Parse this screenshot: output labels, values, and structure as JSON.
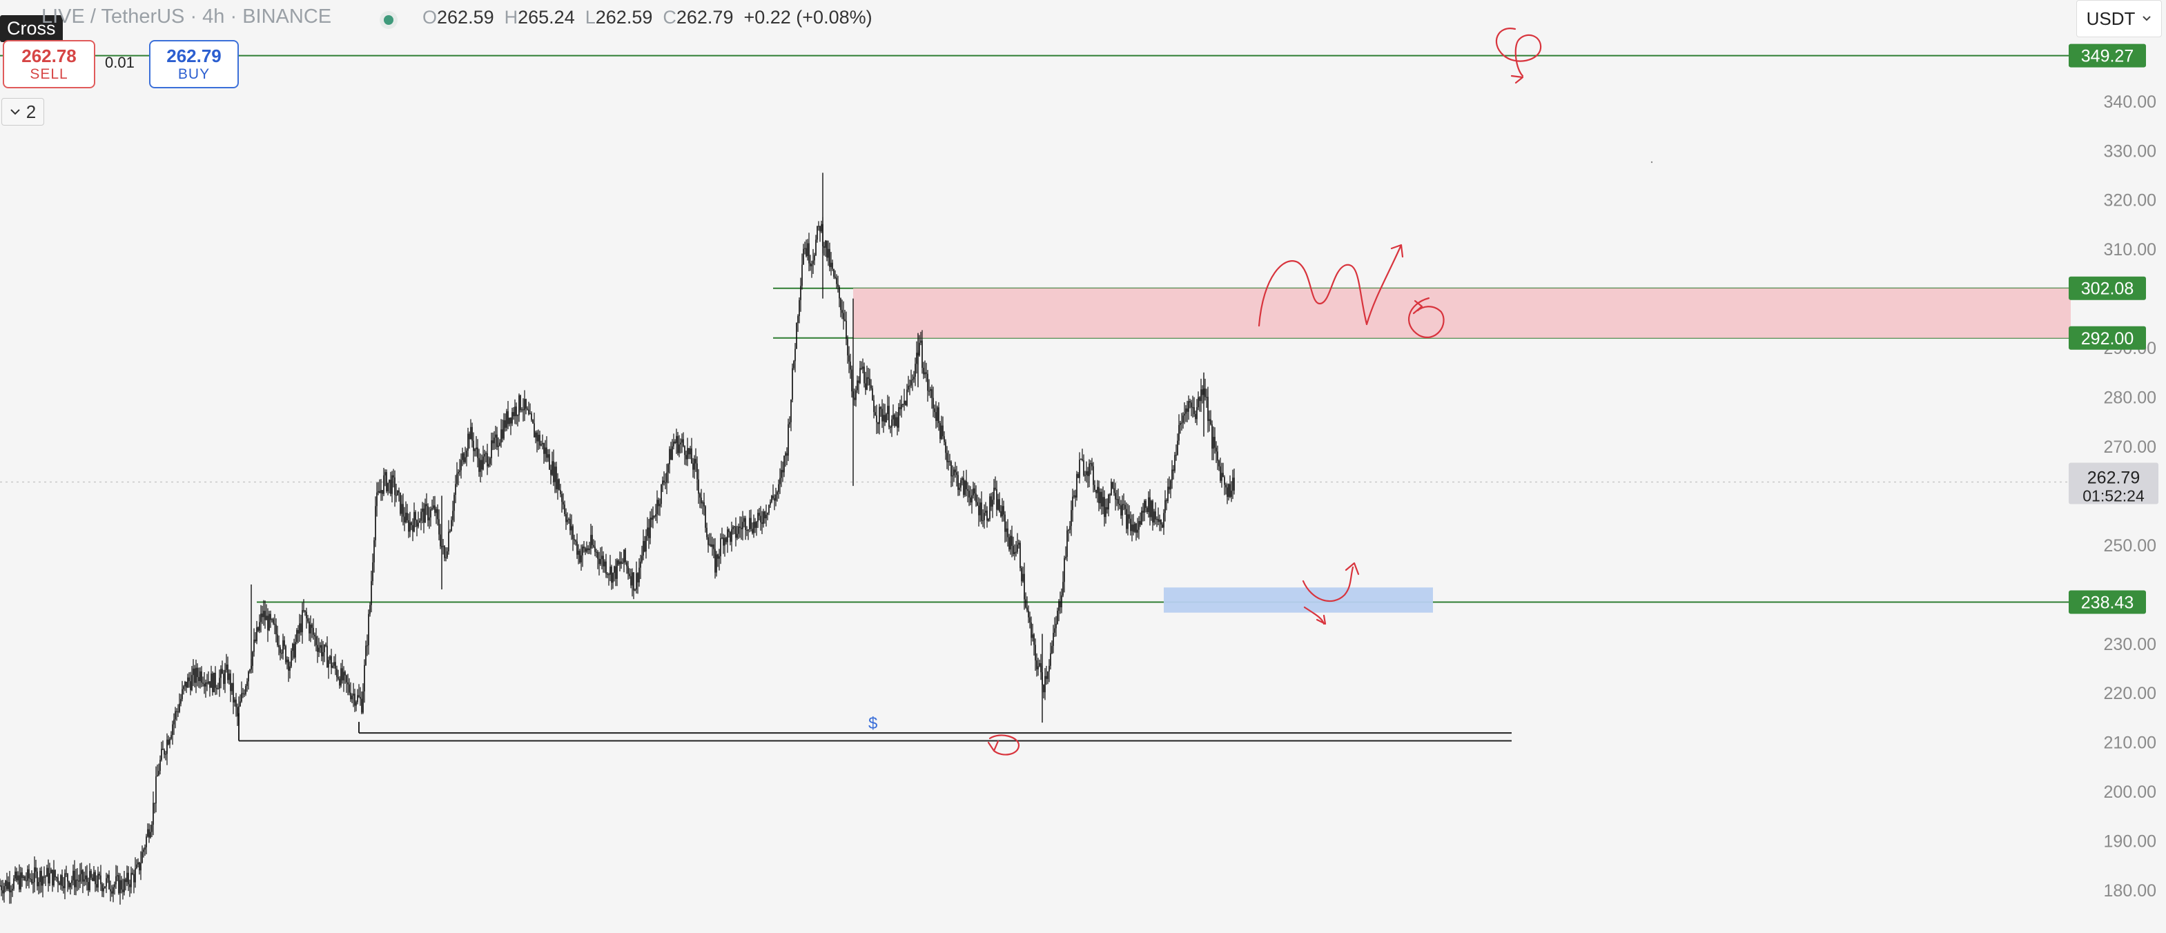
{
  "header": {
    "cross_label": "Cross",
    "symbol": "LIVE / TetherUS · 4h · BINANCE",
    "ohlc": {
      "o_key": "O",
      "o": "262.59",
      "h_key": "H",
      "h": "265.24",
      "l_key": "L",
      "l": "262.59",
      "c_key": "C",
      "c": "262.79",
      "change": "+0.22 (+0.08%)"
    }
  },
  "trade": {
    "sell_price": "262.78",
    "sell_label": "SELL",
    "spread": "0.01",
    "buy_price": "262.79",
    "buy_label": "BUY"
  },
  "indicators_toggle": {
    "count": "2"
  },
  "currency_select": {
    "value": "USDT"
  },
  "colors": {
    "candle": "#111111",
    "level_line": "#2e7d32",
    "level_tag_bg": "#388e3c",
    "resistance_zone": "#f3c7cb",
    "support_zone": "#b8cff0",
    "drawing": "#d8343d",
    "price_tag_bg": "#d6d6db"
  },
  "chart_data": {
    "type": "candlestick",
    "symbol": "LIVE / TetherUS",
    "timeframe": "4h",
    "exchange": "BINANCE",
    "y_axis": {
      "ticks": [
        "340.00",
        "330.00",
        "320.00",
        "310.00",
        "290.00",
        "280.00",
        "270.00",
        "250.00",
        "230.00",
        "220.00",
        "210.00",
        "200.00",
        "190.00",
        "180.00"
      ],
      "ylim": [
        176,
        357
      ]
    },
    "last_price": {
      "value": "262.79",
      "countdown": "01:52:24"
    },
    "levels": [
      {
        "value": 349.27,
        "label": "349.27"
      },
      {
        "value": 302.08,
        "label": "302.08"
      },
      {
        "value": 292.0,
        "label": "292.00"
      },
      {
        "value": 238.43,
        "label": "238.43"
      }
    ],
    "zones": [
      {
        "kind": "resistance",
        "from": 292.0,
        "to": 302.08
      },
      {
        "kind": "support",
        "from": 236.3,
        "to": 241.4
      }
    ],
    "liquidity_lines": [
      211.9,
      210.3
    ],
    "liquidity_marker": "$",
    "price_path": [
      [
        0,
        181
      ],
      [
        30,
        183
      ],
      [
        60,
        182
      ],
      [
        90,
        181
      ],
      [
        100,
        184
      ],
      [
        110,
        195
      ],
      [
        115,
        205
      ],
      [
        125,
        214
      ],
      [
        135,
        222
      ],
      [
        145,
        224
      ],
      [
        155,
        222
      ],
      [
        165,
        224
      ],
      [
        172,
        215
      ],
      [
        180,
        225
      ],
      [
        190,
        236
      ],
      [
        200,
        232
      ],
      [
        210,
        226
      ],
      [
        220,
        236
      ],
      [
        230,
        230
      ],
      [
        240,
        226
      ],
      [
        252,
        221
      ],
      [
        262,
        218
      ],
      [
        268,
        238
      ],
      [
        272,
        258
      ],
      [
        278,
        263
      ],
      [
        285,
        262
      ],
      [
        295,
        254
      ],
      [
        305,
        256
      ],
      [
        315,
        257
      ],
      [
        322,
        247
      ],
      [
        330,
        262
      ],
      [
        340,
        273
      ],
      [
        348,
        266
      ],
      [
        358,
        270
      ],
      [
        368,
        276
      ],
      [
        378,
        279
      ],
      [
        385,
        274
      ],
      [
        395,
        269
      ],
      [
        405,
        262
      ],
      [
        412,
        254
      ],
      [
        420,
        248
      ],
      [
        428,
        250
      ],
      [
        436,
        247
      ],
      [
        444,
        244
      ],
      [
        452,
        247
      ],
      [
        460,
        242
      ],
      [
        466,
        249
      ],
      [
        472,
        255
      ],
      [
        480,
        262
      ],
      [
        488,
        271
      ],
      [
        496,
        270
      ],
      [
        504,
        265
      ],
      [
        512,
        253
      ],
      [
        518,
        246
      ],
      [
        524,
        252
      ],
      [
        532,
        252
      ],
      [
        540,
        255
      ],
      [
        548,
        254
      ],
      [
        556,
        258
      ],
      [
        564,
        261
      ],
      [
        570,
        270
      ],
      [
        574,
        284
      ],
      [
        578,
        298
      ],
      [
        582,
        311
      ],
      [
        588,
        308
      ],
      [
        594,
        315
      ],
      [
        600,
        308
      ],
      [
        606,
        302
      ],
      [
        612,
        296
      ],
      [
        618,
        278
      ],
      [
        624,
        286
      ],
      [
        630,
        281
      ],
      [
        636,
        276
      ],
      [
        642,
        277
      ],
      [
        648,
        274
      ],
      [
        654,
        278
      ],
      [
        660,
        283
      ],
      [
        666,
        291
      ],
      [
        672,
        282
      ],
      [
        678,
        277
      ],
      [
        684,
        270
      ],
      [
        690,
        265
      ],
      [
        696,
        262
      ],
      [
        702,
        261
      ],
      [
        708,
        258
      ],
      [
        714,
        256
      ],
      [
        720,
        260
      ],
      [
        726,
        256
      ],
      [
        732,
        250
      ],
      [
        738,
        249
      ],
      [
        744,
        236
      ],
      [
        750,
        227
      ],
      [
        756,
        222
      ],
      [
        762,
        229
      ],
      [
        768,
        239
      ],
      [
        772,
        249
      ],
      [
        776,
        257
      ],
      [
        782,
        266
      ],
      [
        788,
        266
      ],
      [
        794,
        262
      ],
      [
        800,
        257
      ],
      [
        806,
        263
      ],
      [
        812,
        258
      ],
      [
        818,
        254
      ],
      [
        824,
        253
      ],
      [
        830,
        259
      ],
      [
        836,
        256
      ],
      [
        842,
        255
      ],
      [
        848,
        263
      ],
      [
        854,
        273
      ],
      [
        860,
        279
      ],
      [
        866,
        277
      ],
      [
        872,
        283
      ],
      [
        878,
        271
      ],
      [
        884,
        265
      ],
      [
        890,
        261
      ],
      [
        894,
        262.79
      ]
    ],
    "x_span": [
      0,
      1497
    ]
  }
}
